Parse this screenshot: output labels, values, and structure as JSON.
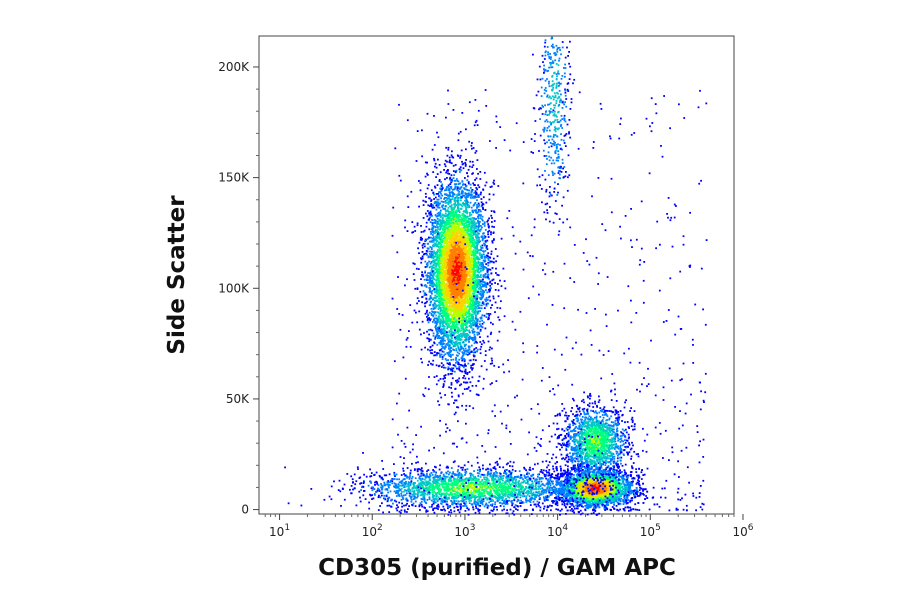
{
  "chart_data": {
    "type": "scatter",
    "xlabel": "CD305 (purified) / GAM APC",
    "ylabel": "Side Scatter",
    "x_scale": "log",
    "xlim": [
      6,
      800000
    ],
    "ylim": [
      -2000,
      214000
    ],
    "x_ticks": [
      {
        "value": 10,
        "base": "10",
        "exp": "1"
      },
      {
        "value": 100,
        "base": "10",
        "exp": "2"
      },
      {
        "value": 1000,
        "base": "10",
        "exp": "3"
      },
      {
        "value": 10000,
        "base": "10",
        "exp": "4"
      },
      {
        "value": 100000,
        "base": "10",
        "exp": "5"
      },
      {
        "value": 1000000,
        "base": "10",
        "exp": "6"
      }
    ],
    "y_ticks": [
      {
        "value": 0,
        "label": "0"
      },
      {
        "value": 50000,
        "label": "50K"
      },
      {
        "value": 100000,
        "label": "100K"
      },
      {
        "value": 150000,
        "label": "150K"
      },
      {
        "value": 200000,
        "label": "200K"
      }
    ],
    "grid": false,
    "legend": "none",
    "colormap": [
      "#0000ff",
      "#0080ff",
      "#00c8c8",
      "#00ff80",
      "#b4ff00",
      "#ffd200",
      "#ff8000",
      "#ff0000"
    ],
    "populations": [
      {
        "x_center": 800,
        "y_center": 108000,
        "log_x_sd": 0.16,
        "y_sd": 20000,
        "count": 6000,
        "peak": 1.0
      },
      {
        "x_center": 25000,
        "y_center": 10000,
        "log_x_sd": 0.2,
        "y_sd": 4200,
        "count": 3600,
        "peak": 1.0
      },
      {
        "x_center": 25000,
        "y_center": 31000,
        "log_x_sd": 0.17,
        "y_sd": 8000,
        "count": 1500,
        "peak": 0.55
      },
      {
        "x_center": 9000,
        "y_center": 185000,
        "log_x_sd": 0.09,
        "y_sd": 26000,
        "count": 450,
        "peak": 0.3
      },
      {
        "x_center": 1200,
        "y_center": 10000,
        "log_x_sd": 0.6,
        "y_sd": 4500,
        "count": 2400,
        "peak": 0.55
      }
    ]
  }
}
